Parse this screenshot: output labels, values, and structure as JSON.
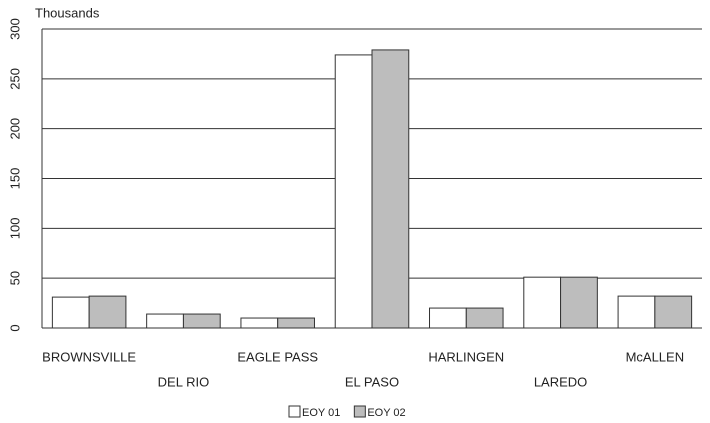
{
  "chart_data": {
    "type": "bar",
    "y_axis_label": "Thousands",
    "categories": [
      "BROWNSVILLE",
      "DEL RIO",
      "EAGLE PASS",
      "EL PASO",
      "HARLINGEN",
      "LAREDO",
      "McALLEN"
    ],
    "series": [
      {
        "name": "EOY 01",
        "color": "#ffffff",
        "values": [
          31,
          14,
          10,
          274,
          20,
          51,
          32
        ]
      },
      {
        "name": "EOY 02",
        "color": "#bdbdbd",
        "values": [
          32,
          14,
          10,
          279,
          20,
          51,
          32
        ]
      }
    ],
    "ylim": [
      0,
      300
    ],
    "yticks": [
      0,
      50,
      100,
      150,
      200,
      250,
      300
    ],
    "grid": true,
    "legend": "bottom"
  }
}
